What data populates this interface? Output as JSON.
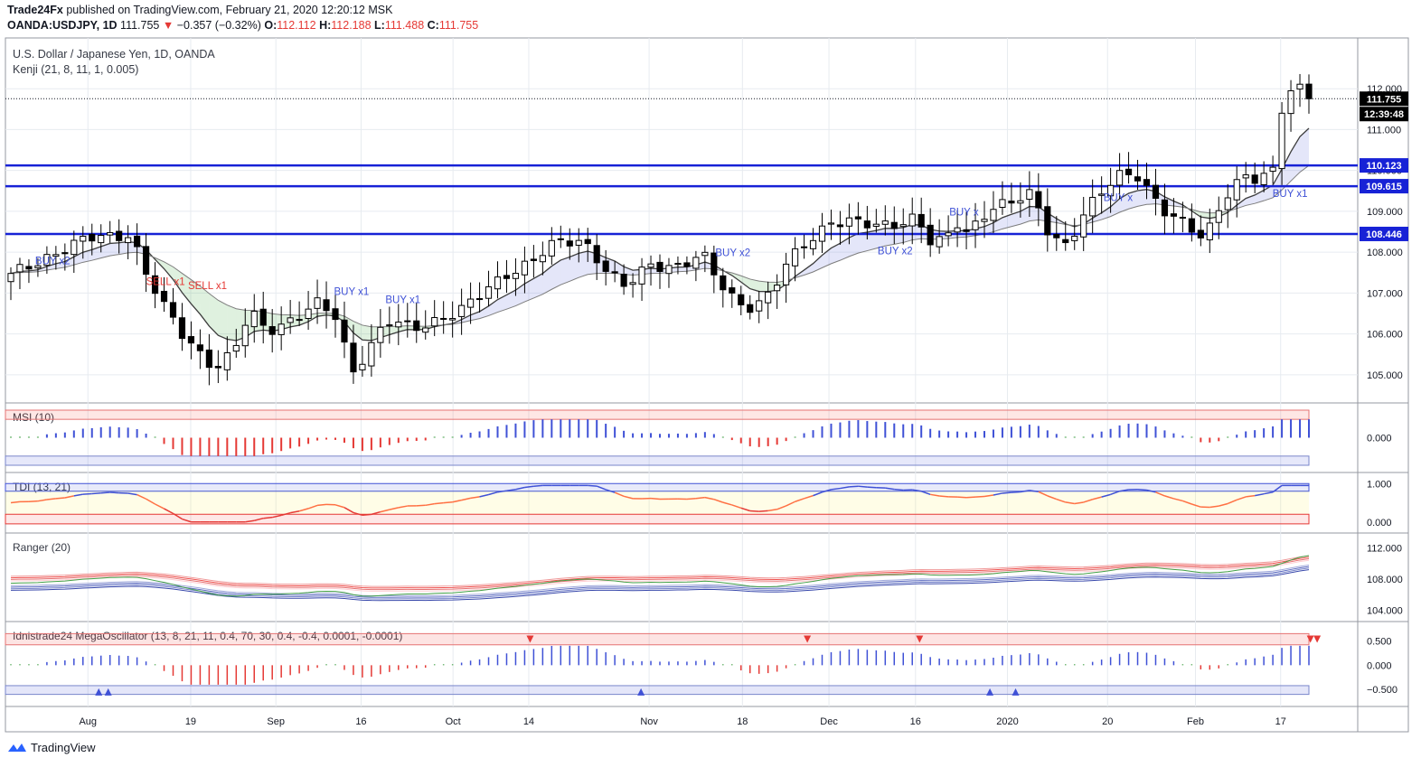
{
  "header": {
    "publisher": "Trade24Fx",
    "published_text": "published on TradingView.com, February 21, 2020 12:20:12 MSK",
    "symbol": "OANDA:USDJPY, 1D",
    "last": "111.755",
    "change": "−0.357 (−0.32%)",
    "o_label": "O:",
    "o": "112.112",
    "h_label": "H:",
    "h": "112.188",
    "l_label": "L:",
    "l": "111.488",
    "c_label": "C:",
    "c": "111.755"
  },
  "footer": {
    "brand": "TradingView"
  },
  "colors": {
    "level_line": "#1722d6",
    "up_candle": "#ffffff",
    "down_candle": "#000000",
    "buy_label": "#3f51d6",
    "sell_label": "#e53935",
    "grid": "#e7ebf0"
  },
  "chart_data": [
    {
      "type": "candlestick",
      "title": "U.S. Dollar / Japanese Yen, 1D, OANDA",
      "indicator": "Kenji (21, 8, 11, 1, 0.005)",
      "ylim": [
        104.4,
        112.8
      ],
      "y_ticks": [
        "112.000",
        "111.000",
        "110.000",
        "109.000",
        "108.000",
        "107.000",
        "106.000",
        "105.000"
      ],
      "x_ticks": [
        "Aug",
        "19",
        "Sep",
        "16",
        "Oct",
        "14",
        "Nov",
        "18",
        "Dec",
        "16",
        "2020",
        "20",
        "Feb",
        "17"
      ],
      "price_labels": [
        {
          "text": "111.755",
          "value": 111.755
        },
        {
          "text": "12:39:48",
          "value": 111.38
        }
      ],
      "horizontal_levels": [
        {
          "text": "110.123",
          "value": 110.123
        },
        {
          "text": "109.615",
          "value": 109.615
        },
        {
          "text": "108.446",
          "value": 108.446
        }
      ],
      "signals": [
        {
          "text": "BUY x2",
          "x": 0.022,
          "value": 107.7,
          "side": "buy"
        },
        {
          "text": "SELL x1",
          "x": 0.104,
          "value": 107.2,
          "side": "sell"
        },
        {
          "text": "SELL x1",
          "x": 0.135,
          "value": 107.1,
          "side": "sell"
        },
        {
          "text": "BUY x1",
          "x": 0.243,
          "value": 106.95,
          "side": "buy"
        },
        {
          "text": "BUY x1",
          "x": 0.281,
          "value": 106.75,
          "side": "buy"
        },
        {
          "text": "BUY x2",
          "x": 0.525,
          "value": 107.9,
          "side": "buy"
        },
        {
          "text": "BUY x2",
          "x": 0.645,
          "value": 107.95,
          "side": "buy"
        },
        {
          "text": "BUY x",
          "x": 0.698,
          "value": 108.9,
          "side": "buy"
        },
        {
          "text": "BUY x",
          "x": 0.812,
          "value": 109.25,
          "side": "buy"
        },
        {
          "text": "BUY x1",
          "x": 0.937,
          "value": 109.35,
          "side": "buy"
        }
      ]
    },
    {
      "type": "bar",
      "title": "MSI (10)",
      "ylim": [
        -0.45,
        0.45
      ],
      "y_ticks": [
        "0.000"
      ]
    },
    {
      "type": "line",
      "title": "TDI (13, 21)",
      "ylim": [
        -0.1,
        1.1
      ],
      "y_ticks": [
        "1.000",
        "0.000"
      ]
    },
    {
      "type": "line",
      "title": "Ranger (20)",
      "ylim": [
        103.5,
        113.0
      ],
      "y_ticks": [
        "112.000",
        "108.000",
        "104.000"
      ]
    },
    {
      "type": "bar",
      "title": "Idnistrade24 MegaOscillator (13, 8, 21, 11, 0.4, 70, 30, 0.4, -0.4, 0.0001, -0.0001)",
      "ylim": [
        -0.7,
        0.75
      ],
      "y_ticks": [
        "0.500",
        "0.000",
        "−0.500"
      ]
    }
  ]
}
